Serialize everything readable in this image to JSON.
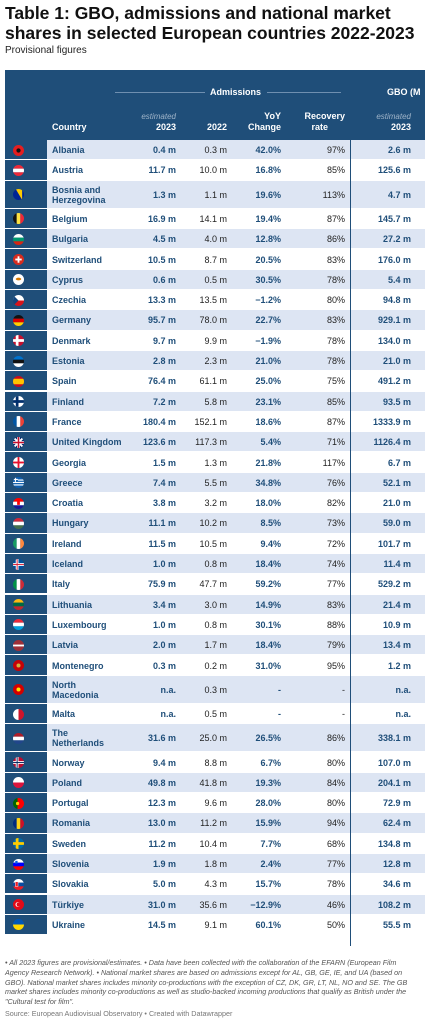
{
  "title": "Table 1: GBO, admissions and national market shares in selected European countries 2022-2023",
  "subtitle": "Provisional figures",
  "header": {
    "admissions": "Admissions",
    "gbo": "GBO (M",
    "country": "Country",
    "estimated": "estimated",
    "y2023": "2023",
    "y2022": "2022",
    "yoy1": "YoY",
    "yoy2": "Change",
    "rec1": "Recovery",
    "rec2": "rate",
    "gbo_est": "estimated",
    "gbo_year": "2023"
  },
  "colors": {
    "header_bg": "#1f4e79",
    "row_a": "#dde5f3",
    "row_b": "#ffffff",
    "accent": "#1f4e79"
  },
  "rows": [
    {
      "flag": "AL",
      "country": "Albania",
      "a2023": "0.4 m",
      "a2022": "0.3 m",
      "yoy": "42.0%",
      "rec": "97%",
      "gbo": "2.6 m"
    },
    {
      "flag": "AT",
      "country": "Austria",
      "a2023": "11.7 m",
      "a2022": "10.0 m",
      "yoy": "16.8%",
      "rec": "85%",
      "gbo": "125.6 m"
    },
    {
      "flag": "BA",
      "country": "Bosnia and Herzegovina",
      "a2023": "1.3 m",
      "a2022": "1.1 m",
      "yoy": "19.6%",
      "rec": "113%",
      "gbo": "4.7 m"
    },
    {
      "flag": "BE",
      "country": "Belgium",
      "a2023": "16.9 m",
      "a2022": "14.1 m",
      "yoy": "19.4%",
      "rec": "87%",
      "gbo": "145.7 m"
    },
    {
      "flag": "BG",
      "country": "Bulgaria",
      "a2023": "4.5 m",
      "a2022": "4.0 m",
      "yoy": "12.8%",
      "rec": "86%",
      "gbo": "27.2 m"
    },
    {
      "flag": "CH",
      "country": "Switzerland",
      "a2023": "10.5 m",
      "a2022": "8.7 m",
      "yoy": "20.5%",
      "rec": "83%",
      "gbo": "176.0 m"
    },
    {
      "flag": "CY",
      "country": "Cyprus",
      "a2023": "0.6 m",
      "a2022": "0.5 m",
      "yoy": "30.5%",
      "rec": "78%",
      "gbo": "5.4 m"
    },
    {
      "flag": "CZ",
      "country": "Czechia",
      "a2023": "13.3 m",
      "a2022": "13.5 m",
      "yoy": "−1.2%",
      "rec": "80%",
      "gbo": "94.8 m"
    },
    {
      "flag": "DE",
      "country": "Germany",
      "a2023": "95.7 m",
      "a2022": "78.0 m",
      "yoy": "22.7%",
      "rec": "83%",
      "gbo": "929.1 m"
    },
    {
      "flag": "DK",
      "country": "Denmark",
      "a2023": "9.7 m",
      "a2022": "9.9 m",
      "yoy": "−1.9%",
      "rec": "78%",
      "gbo": "134.0 m"
    },
    {
      "flag": "EE",
      "country": "Estonia",
      "a2023": "2.8 m",
      "a2022": "2.3 m",
      "yoy": "21.0%",
      "rec": "78%",
      "gbo": "21.0 m"
    },
    {
      "flag": "ES",
      "country": "Spain",
      "a2023": "76.4 m",
      "a2022": "61.1 m",
      "yoy": "25.0%",
      "rec": "75%",
      "gbo": "491.2 m"
    },
    {
      "flag": "FI",
      "country": "Finland",
      "a2023": "7.2 m",
      "a2022": "5.8 m",
      "yoy": "23.1%",
      "rec": "85%",
      "gbo": "93.5 m"
    },
    {
      "flag": "FR",
      "country": "France",
      "a2023": "180.4 m",
      "a2022": "152.1 m",
      "yoy": "18.6%",
      "rec": "87%",
      "gbo": "1333.9 m"
    },
    {
      "flag": "GB",
      "country": "United Kingdom",
      "a2023": "123.6 m",
      "a2022": "117.3 m",
      "yoy": "5.4%",
      "rec": "71%",
      "gbo": "1126.4 m"
    },
    {
      "flag": "GE",
      "country": "Georgia",
      "a2023": "1.5 m",
      "a2022": "1.3 m",
      "yoy": "21.8%",
      "rec": "117%",
      "gbo": "6.7 m"
    },
    {
      "flag": "GR",
      "country": "Greece",
      "a2023": "7.4 m",
      "a2022": "5.5 m",
      "yoy": "34.8%",
      "rec": "76%",
      "gbo": "52.1 m"
    },
    {
      "flag": "HR",
      "country": "Croatia",
      "a2023": "3.8 m",
      "a2022": "3.2 m",
      "yoy": "18.0%",
      "rec": "82%",
      "gbo": "21.0 m"
    },
    {
      "flag": "HU",
      "country": "Hungary",
      "a2023": "11.1 m",
      "a2022": "10.2 m",
      "yoy": "8.5%",
      "rec": "73%",
      "gbo": "59.0 m"
    },
    {
      "flag": "IE",
      "country": "Ireland",
      "a2023": "11.5 m",
      "a2022": "10.5 m",
      "yoy": "9.4%",
      "rec": "72%",
      "gbo": "101.7 m"
    },
    {
      "flag": "IS",
      "country": "Iceland",
      "a2023": "1.0 m",
      "a2022": "0.8 m",
      "yoy": "18.4%",
      "rec": "74%",
      "gbo": "11.4 m"
    },
    {
      "flag": "IT",
      "country": "Italy",
      "a2023": "75.9 m",
      "a2022": "47.7 m",
      "yoy": "59.2%",
      "rec": "77%",
      "gbo": "529.2 m"
    },
    {
      "flag": "LT",
      "country": "Lithuania",
      "a2023": "3.4 m",
      "a2022": "3.0 m",
      "yoy": "14.9%",
      "rec": "83%",
      "gbo": "21.4 m"
    },
    {
      "flag": "LU",
      "country": "Luxembourg",
      "a2023": "1.0 m",
      "a2022": "0.8 m",
      "yoy": "30.1%",
      "rec": "88%",
      "gbo": "10.9 m"
    },
    {
      "flag": "LV",
      "country": "Latvia",
      "a2023": "2.0 m",
      "a2022": "1.7 m",
      "yoy": "18.4%",
      "rec": "79%",
      "gbo": "13.4 m"
    },
    {
      "flag": "ME",
      "country": "Montenegro",
      "a2023": "0.3 m",
      "a2022": "0.2 m",
      "yoy": "31.0%",
      "rec": "95%",
      "gbo": "1.2 m"
    },
    {
      "flag": "MK",
      "country": "North Macedonia",
      "a2023": "n.a.",
      "a2022": "0.3 m",
      "yoy": "-",
      "rec": "-",
      "gbo": "n.a."
    },
    {
      "flag": "MT",
      "country": "Malta",
      "a2023": "n.a.",
      "a2022": "0.5 m",
      "yoy": "-",
      "rec": "-",
      "gbo": "n.a."
    },
    {
      "flag": "NL",
      "country": "The Netherlands",
      "a2023": "31.6 m",
      "a2022": "25.0 m",
      "yoy": "26.5%",
      "rec": "86%",
      "gbo": "338.1 m"
    },
    {
      "flag": "NO",
      "country": "Norway",
      "a2023": "9.4 m",
      "a2022": "8.8 m",
      "yoy": "6.7%",
      "rec": "80%",
      "gbo": "107.0 m"
    },
    {
      "flag": "PL",
      "country": "Poland",
      "a2023": "49.8 m",
      "a2022": "41.8 m",
      "yoy": "19.3%",
      "rec": "84%",
      "gbo": "204.1 m"
    },
    {
      "flag": "PT",
      "country": "Portugal",
      "a2023": "12.3 m",
      "a2022": "9.6 m",
      "yoy": "28.0%",
      "rec": "80%",
      "gbo": "72.9 m"
    },
    {
      "flag": "RO",
      "country": "Romania",
      "a2023": "13.0 m",
      "a2022": "11.2 m",
      "yoy": "15.9%",
      "rec": "94%",
      "gbo": "62.4 m"
    },
    {
      "flag": "SE",
      "country": "Sweden",
      "a2023": "11.2 m",
      "a2022": "10.4 m",
      "yoy": "7.7%",
      "rec": "68%",
      "gbo": "134.8 m"
    },
    {
      "flag": "SI",
      "country": "Slovenia",
      "a2023": "1.9 m",
      "a2022": "1.8 m",
      "yoy": "2.4%",
      "rec": "77%",
      "gbo": "12.8 m"
    },
    {
      "flag": "SK",
      "country": "Slovakia",
      "a2023": "5.0 m",
      "a2022": "4.3 m",
      "yoy": "15.7%",
      "rec": "78%",
      "gbo": "34.6 m"
    },
    {
      "flag": "TR",
      "country": "Türkiye",
      "a2023": "31.0 m",
      "a2022": "35.6 m",
      "yoy": "−12.9%",
      "rec": "46%",
      "gbo": "108.2 m"
    },
    {
      "flag": "UA",
      "country": "Ukraine",
      "a2023": "14.5 m",
      "a2022": "9.1 m",
      "yoy": "60.1%",
      "rec": "50%",
      "gbo": "55.5 m"
    }
  ],
  "footnote": "• All 2023 figures are provisional/estimates. • Data have been collected with the collaboration of the EFARN (European Film Agency Research Network). • National market shares are based on admissions except for AL, GB, GE, IE, and UA (based on GBO). National market shares includes minority co-productions with the exception of CZ, DK, GR, LT, NL, NO and SE. The GB market shares includes minority co-productions as well as studio-backed incoming productions that qualify as British under the \"Cultural test for film\".",
  "source": "Source: European Audiovisual Observatory • Created with Datawrapper"
}
